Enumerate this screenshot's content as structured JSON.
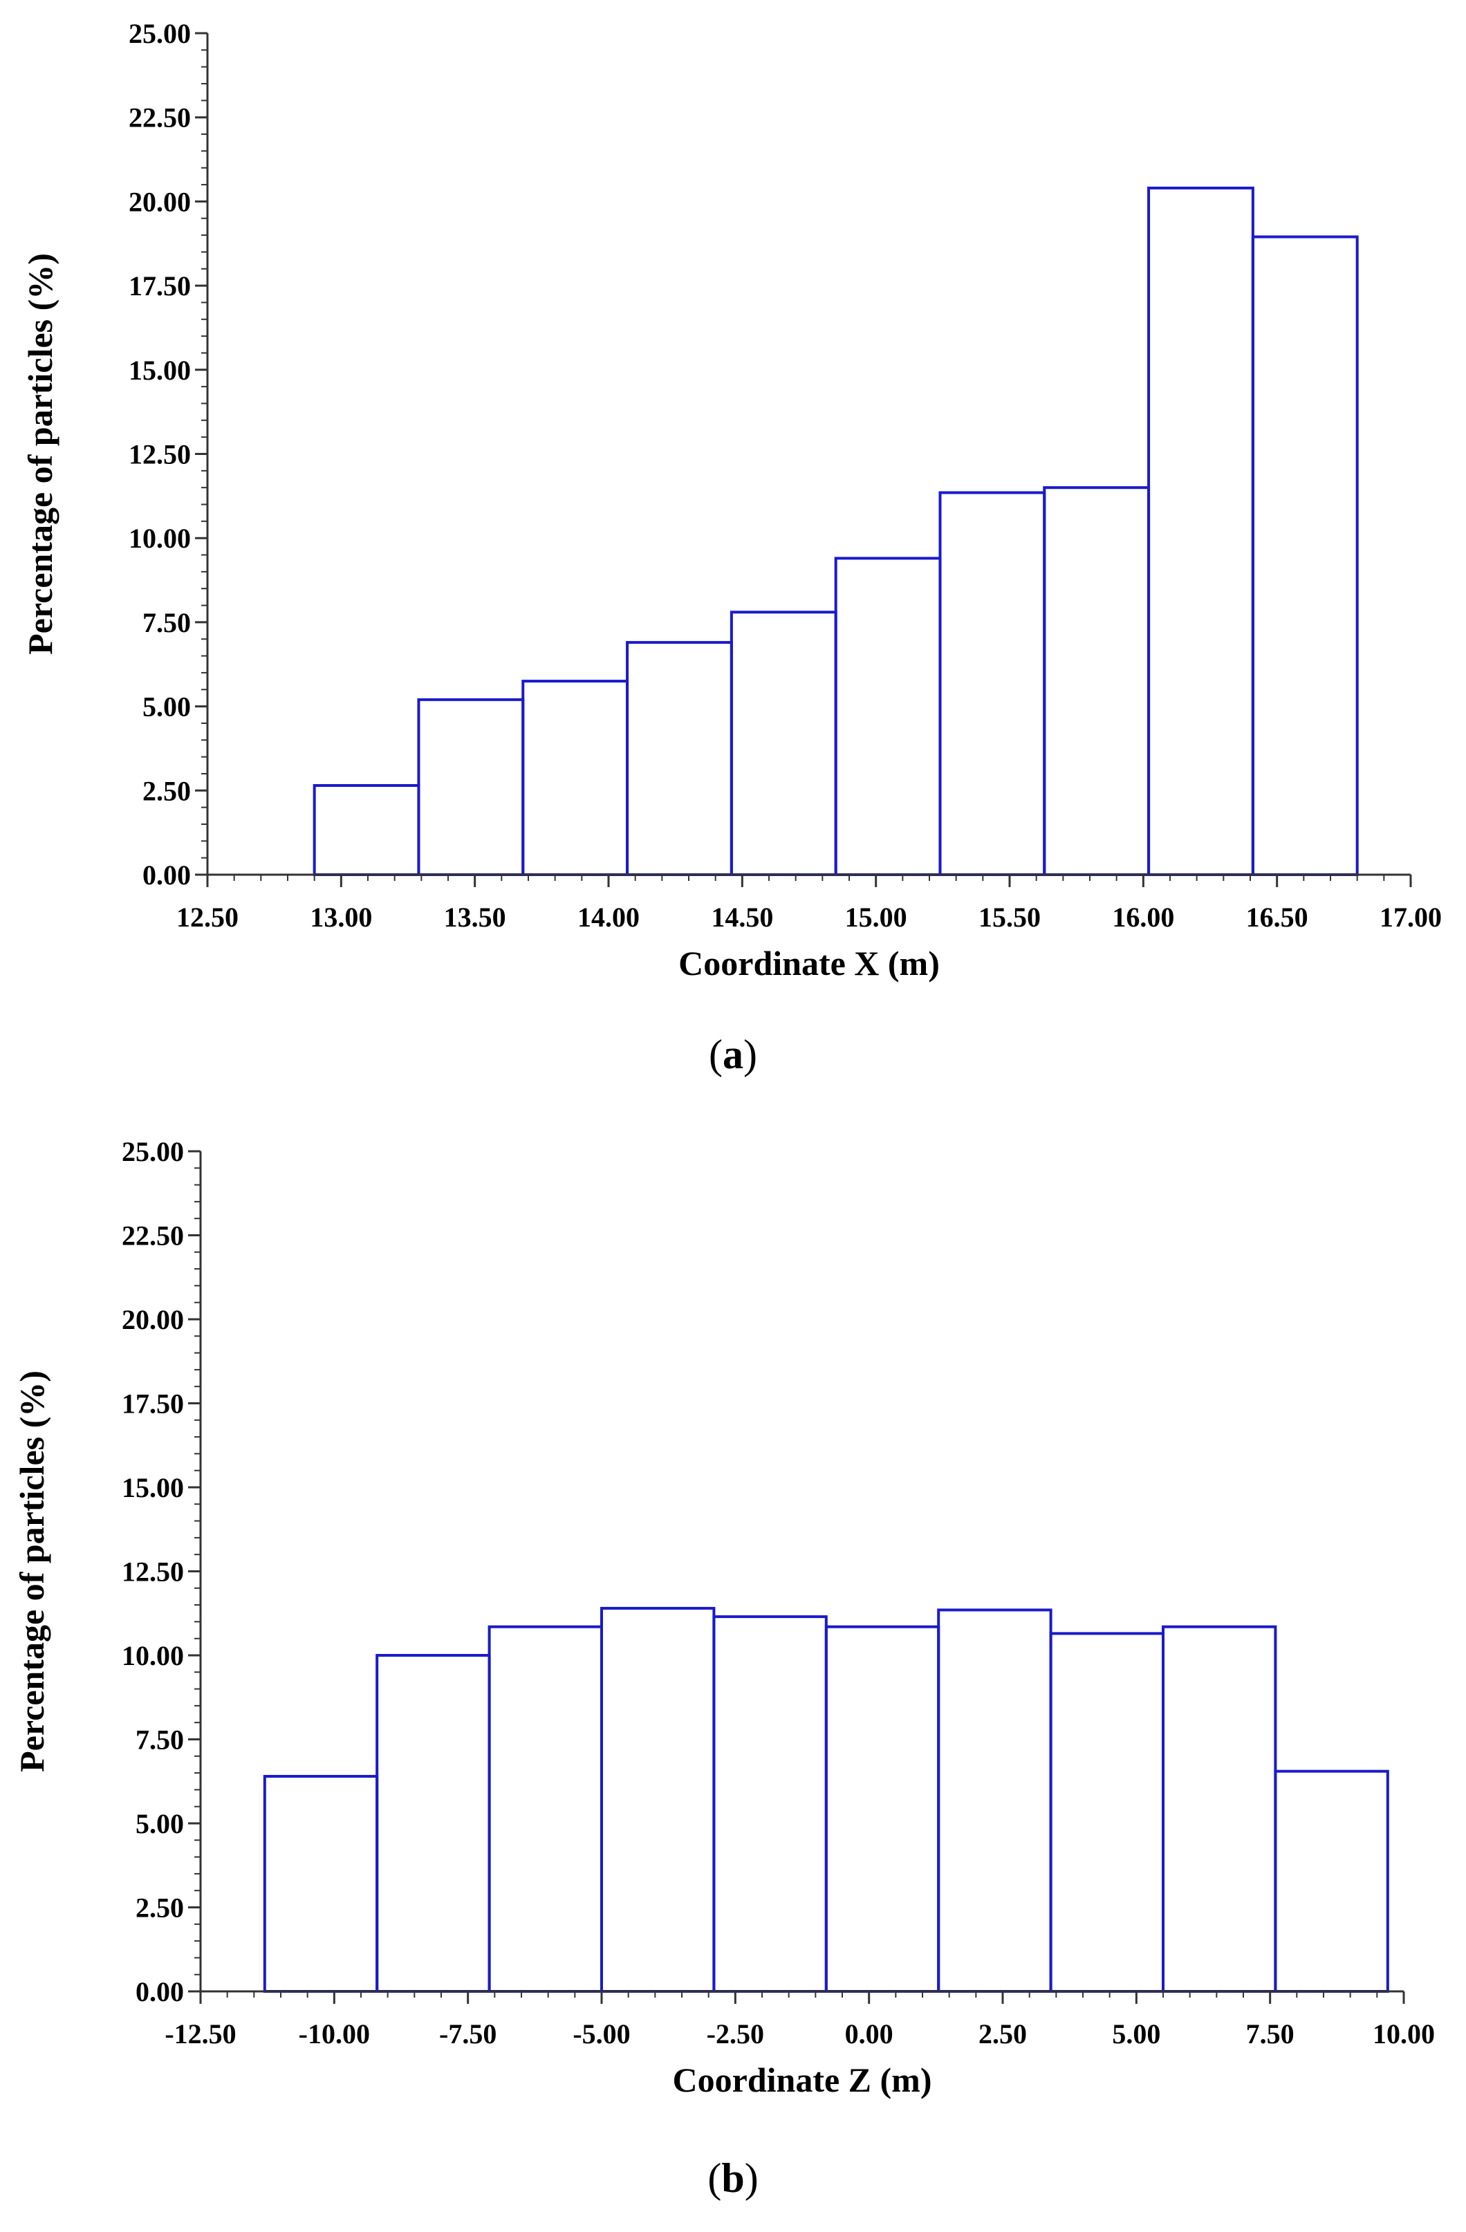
{
  "chart_data": [
    {
      "type": "bar",
      "panel_label": "a",
      "xlabel": "Coordinate X (m)",
      "ylabel": "Percentage of particles (%)",
      "xlim": [
        12.5,
        17.0
      ],
      "ylim": [
        0,
        25
      ],
      "x_ticks": [
        "12.50",
        "13.00",
        "13.50",
        "14.00",
        "14.50",
        "15.00",
        "15.50",
        "16.00",
        "16.50",
        "17.00"
      ],
      "y_ticks": [
        "0.00",
        "2.50",
        "5.00",
        "7.50",
        "10.00",
        "12.50",
        "15.00",
        "17.50",
        "20.00",
        "22.50",
        "25.00"
      ],
      "bin_edges": [
        12.9,
        13.29,
        13.68,
        14.07,
        14.46,
        14.85,
        15.24,
        15.63,
        16.02,
        16.41,
        16.8
      ],
      "values": [
        2.65,
        5.2,
        5.75,
        6.9,
        7.8,
        9.4,
        11.35,
        11.5,
        20.4,
        18.95
      ],
      "bar_color": "#1a1acc",
      "grid": false
    },
    {
      "type": "bar",
      "panel_label": "b",
      "xlabel": "Coordinate Z (m)",
      "ylabel": "Percentage of particles (%)",
      "xlim": [
        -12.5,
        10.0
      ],
      "ylim": [
        0,
        25
      ],
      "x_ticks": [
        "-12.50",
        "-10.00",
        "-7.50",
        "-5.00",
        "-2.50",
        "0.00",
        "2.50",
        "5.00",
        "7.50",
        "10.00"
      ],
      "y_ticks": [
        "0.00",
        "2.50",
        "5.00",
        "7.50",
        "10.00",
        "12.50",
        "15.00",
        "17.50",
        "20.00",
        "22.50",
        "25.00"
      ],
      "bin_edges": [
        -11.3,
        -9.2,
        -7.1,
        -5.0,
        -2.9,
        -0.8,
        1.3,
        3.4,
        5.5,
        7.6,
        9.7
      ],
      "values": [
        6.4,
        10.0,
        10.85,
        11.4,
        11.15,
        10.85,
        11.35,
        10.65,
        10.85,
        6.55
      ],
      "bar_color": "#1a1acc",
      "grid": false
    }
  ]
}
